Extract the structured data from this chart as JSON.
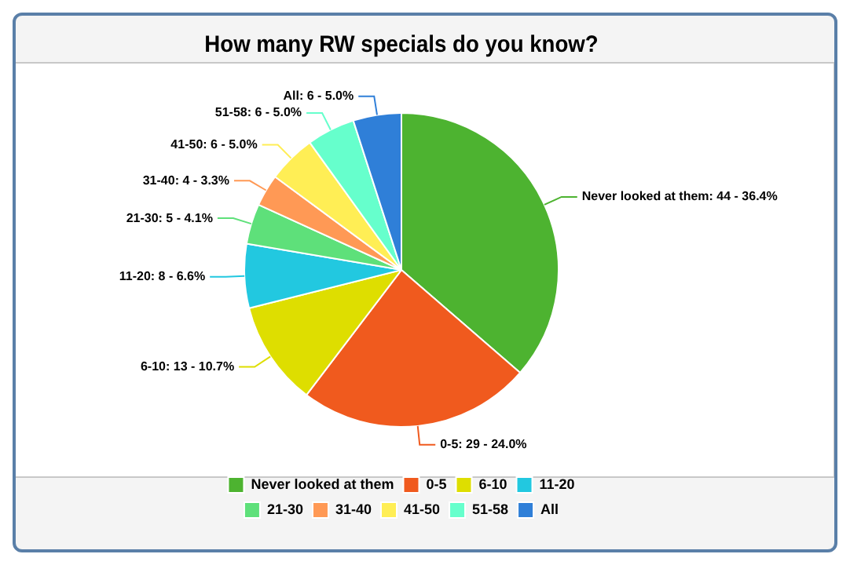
{
  "chart_data": {
    "type": "pie",
    "title": "How many RW specials do you know?",
    "categories": [
      "Never looked at them",
      "0-5",
      "6-10",
      "11-20",
      "21-30",
      "31-40",
      "41-50",
      "51-58",
      "All"
    ],
    "values": [
      44,
      29,
      13,
      8,
      5,
      4,
      6,
      6,
      6
    ],
    "colors": [
      "#4db330",
      "#f05a1e",
      "#dede00",
      "#22c8e0",
      "#5ee07a",
      "#ff9955",
      "#ffee55",
      "#66ffcc",
      "#2f7fd8"
    ],
    "value_labels": [
      "Never looked at them: 44 - 36.4%",
      "0-5: 29 - 24.0%",
      "6-10: 13 - 10.7%",
      "11-20: 8 - 6.6%",
      "21-30: 5 - 4.1%",
      "31-40: 4 - 3.3%",
      "41-50: 6 - 5.0%",
      "51-58: 6 - 5.0%",
      "All: 6 - 5.0%"
    ],
    "legend": "bottom"
  }
}
